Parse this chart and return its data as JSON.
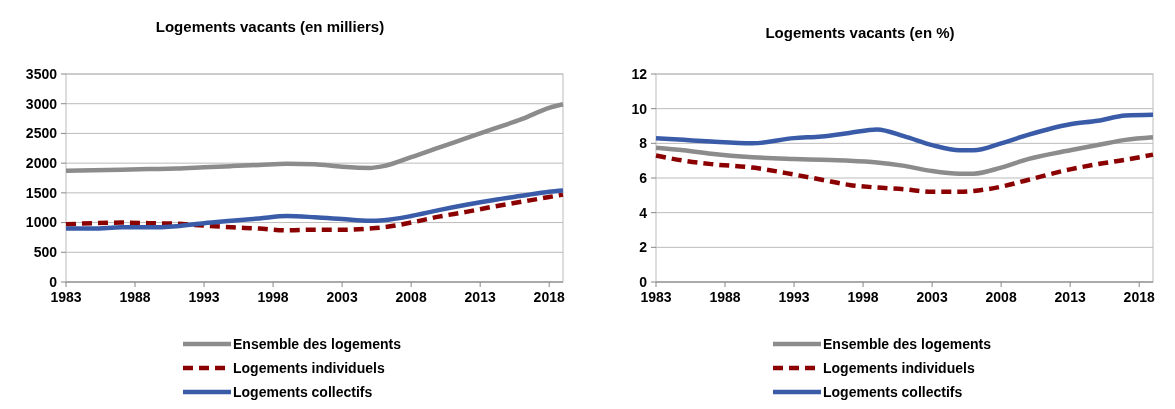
{
  "chart_data": [
    {
      "type": "line",
      "title": "Logements vacants (en milliers)",
      "xlim": [
        1983,
        2019
      ],
      "xticks": [
        1983,
        1988,
        1993,
        1998,
        2003,
        2008,
        2013,
        2018
      ],
      "ylim": [
        0,
        3500
      ],
      "yticks": [
        0,
        500,
        1000,
        1500,
        2000,
        2500,
        3000,
        3500
      ],
      "grid": "y",
      "legend": "bottom",
      "series": [
        {
          "name": "Ensemble des logements",
          "color": "#8c8c8c",
          "line_style": "solid",
          "x": [
            1983,
            1985,
            1987,
            1989,
            1991,
            1993,
            1995,
            1997,
            1999,
            2001,
            2003,
            2005,
            2006,
            2008,
            2010,
            2012,
            2014,
            2016,
            2018,
            2019
          ],
          "values": [
            1870,
            1880,
            1890,
            1900,
            1910,
            1930,
            1950,
            1970,
            1990,
            1980,
            1940,
            1920,
            1950,
            2100,
            2260,
            2420,
            2580,
            2740,
            2930,
            2990
          ]
        },
        {
          "name": "Logements individuels",
          "color": "#8b0000",
          "line_style": "dashed",
          "x": [
            1983,
            1985,
            1987,
            1989,
            1991,
            1993,
            1995,
            1997,
            1999,
            2001,
            2003,
            2005,
            2006,
            2008,
            2010,
            2012,
            2014,
            2016,
            2018,
            2019
          ],
          "values": [
            970,
            990,
            1000,
            990,
            980,
            950,
            920,
            900,
            870,
            880,
            880,
            900,
            920,
            1000,
            1100,
            1180,
            1270,
            1350,
            1430,
            1470
          ]
        },
        {
          "name": "Logements collectifs",
          "color": "#3a5ca8",
          "line_style": "solid",
          "x": [
            1983,
            1985,
            1987,
            1989,
            1991,
            1993,
            1995,
            1997,
            1999,
            2001,
            2003,
            2005,
            2006,
            2008,
            2010,
            2012,
            2014,
            2016,
            2018,
            2019
          ],
          "values": [
            900,
            900,
            920,
            920,
            940,
            990,
            1030,
            1070,
            1110,
            1090,
            1060,
            1030,
            1040,
            1110,
            1210,
            1300,
            1380,
            1450,
            1520,
            1540
          ]
        }
      ]
    },
    {
      "type": "line",
      "title": "Logements vacants (en %)",
      "xlim": [
        1983,
        2019
      ],
      "xticks": [
        1983,
        1988,
        1993,
        1998,
        2003,
        2008,
        2013,
        2018
      ],
      "ylim": [
        0,
        12
      ],
      "yticks": [
        0,
        2,
        4,
        6,
        8,
        10,
        12
      ],
      "grid": "y",
      "legend": "bottom",
      "series": [
        {
          "name": "Ensemble des logements",
          "color": "#8c8c8c",
          "line_style": "solid",
          "x": [
            1983,
            1985,
            1987,
            1990,
            1993,
            1995,
            1997,
            1999,
            2001,
            2003,
            2005,
            2006,
            2008,
            2010,
            2013,
            2015,
            2017,
            2019
          ],
          "values": [
            7.75,
            7.6,
            7.4,
            7.2,
            7.1,
            7.05,
            7.0,
            6.9,
            6.7,
            6.4,
            6.25,
            6.25,
            6.6,
            7.1,
            7.6,
            7.9,
            8.2,
            8.35
          ]
        },
        {
          "name": "Logements individuels",
          "color": "#8b0000",
          "line_style": "dashed",
          "x": [
            1983,
            1985,
            1987,
            1990,
            1993,
            1995,
            1997,
            1999,
            2001,
            2003,
            2005,
            2006,
            2008,
            2010,
            2013,
            2015,
            2017,
            2019
          ],
          "values": [
            7.3,
            7.0,
            6.8,
            6.6,
            6.2,
            5.9,
            5.6,
            5.45,
            5.35,
            5.2,
            5.2,
            5.25,
            5.5,
            5.9,
            6.5,
            6.8,
            7.05,
            7.35
          ]
        },
        {
          "name": "Logements collectifs",
          "color": "#3a5ca8",
          "line_style": "solid",
          "x": [
            1983,
            1985,
            1987,
            1990,
            1993,
            1995,
            1997,
            1999,
            2001,
            2003,
            2005,
            2006,
            2008,
            2010,
            2013,
            2015,
            2017,
            2019
          ],
          "values": [
            8.3,
            8.2,
            8.1,
            8.0,
            8.3,
            8.4,
            8.6,
            8.8,
            8.4,
            7.9,
            7.6,
            7.6,
            8.0,
            8.5,
            9.1,
            9.3,
            9.6,
            9.65
          ]
        }
      ]
    }
  ]
}
